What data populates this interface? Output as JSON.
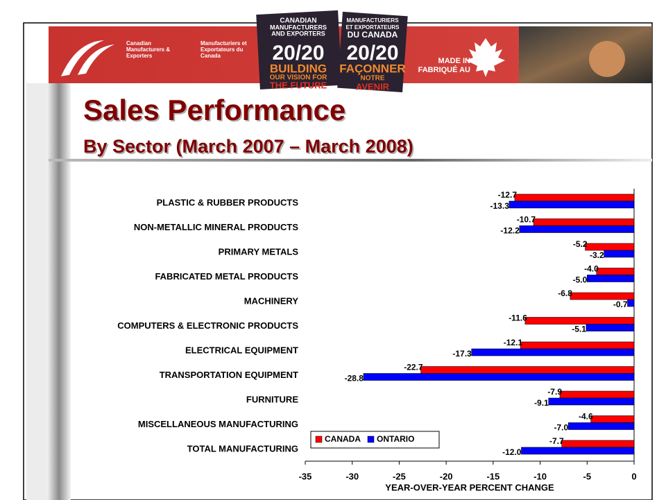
{
  "header": {
    "org_en": [
      "Canadian",
      "Manufacturers &",
      "Exporters"
    ],
    "org_fr": [
      "Manufacturiers et",
      "Exportateurs du",
      "Canada"
    ],
    "logo_en": [
      "CANADIAN",
      "MANUFACTURERS",
      "AND EXPORTERS",
      "20/20",
      "BUILDING",
      "OUR VISION FOR",
      "THE FUTURE"
    ],
    "logo_fr": [
      "MANUFACTURIERS",
      "ET EXPORTATEURS",
      "DU CANADA",
      "20/20",
      "FAÇONNER",
      "NOTRE",
      "AVENIR"
    ],
    "made_in": [
      "MADE IN",
      "FABRIQUÉ AU"
    ]
  },
  "chart_data": {
    "type": "bar",
    "orientation": "horizontal",
    "title": "Sales Performance",
    "subtitle": "By Sector (March 2007 – March 2008)",
    "x_label": "YEAR-OVER-YEAR PERCENT CHANGE",
    "categories": [
      "PLASTIC & RUBBER PRODUCTS",
      "NON-METALLIC MINERAL PRODUCTS",
      "PRIMARY METALS",
      "FABRICATED METAL PRODUCTS",
      "MACHINERY",
      "COMPUTERS & ELECTRONIC PRODUCTS",
      "ELECTRICAL EQUIPMENT",
      "TRANSPORTATION EQUIPMENT",
      "FURNITURE",
      "MISCELLANEOUS MANUFACTURING",
      "TOTAL MANUFACTURING"
    ],
    "series": [
      {
        "name": "CANADA",
        "color": "#ff0000",
        "values": [
          -12.7,
          -10.7,
          -5.2,
          -4.0,
          -6.8,
          -11.6,
          -12.1,
          -22.7,
          -7.9,
          -4.6,
          -7.7
        ],
        "value_labels": [
          "-12.7",
          "-10.7",
          "-5.2",
          "-4.0",
          "-6.8",
          "-11.6",
          "-12.1",
          "-22.7",
          "-7.9",
          "-4.6",
          "-7.7"
        ]
      },
      {
        "name": "ONTARIO",
        "color": "#0000ff",
        "values": [
          -13.3,
          -12.2,
          -3.2,
          -5.0,
          -0.7,
          -5.1,
          -17.3,
          -28.8,
          -9.1,
          -7.0,
          -12.0
        ],
        "value_labels": [
          "-13.3",
          "-12.2",
          "-3.2",
          "-5.0",
          "-0.7",
          "-5.1",
          "-17.3",
          "-28.8",
          "-9.1",
          "-7.0",
          "-12.0"
        ]
      }
    ],
    "xlim": [
      -35,
      0
    ],
    "xticks": [
      -35,
      -30,
      -25,
      -20,
      -15,
      -10,
      -5,
      0
    ],
    "legend": "bottom-left"
  }
}
